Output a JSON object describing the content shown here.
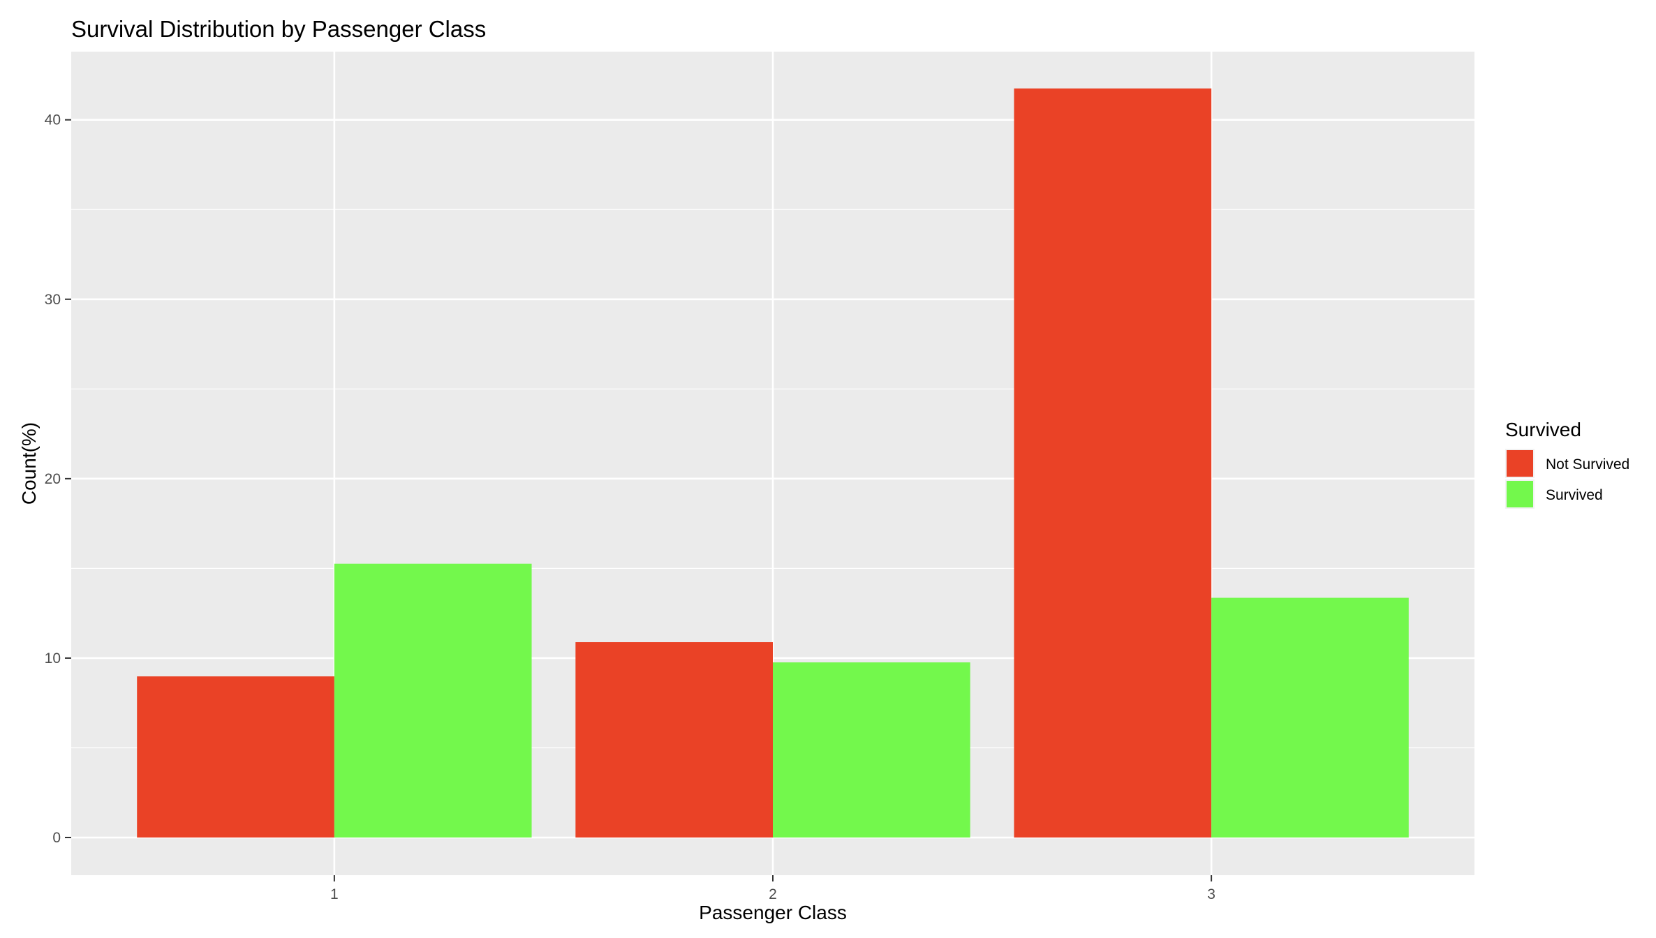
{
  "chart_data": {
    "type": "bar",
    "title": "Survival Distribution by Passenger Class",
    "xlabel": "Passenger Class",
    "ylabel": "Count(%)",
    "categories": [
      "1",
      "2",
      "3"
    ],
    "series": [
      {
        "name": "Not Survived",
        "color": "#EA4226",
        "values": [
          8.98,
          10.89,
          41.75
        ]
      },
      {
        "name": "Survived",
        "color": "#73F84C",
        "values": [
          15.26,
          9.76,
          13.36
        ]
      }
    ],
    "ylim": [
      -2.1,
      43.8
    ],
    "yticks": [
      0,
      10,
      20,
      30,
      40
    ],
    "yminor": [
      5,
      15,
      25,
      35
    ],
    "grid": true,
    "panel_background": "#EBEBEB",
    "legend": {
      "title": "Survived",
      "position": "right"
    }
  }
}
